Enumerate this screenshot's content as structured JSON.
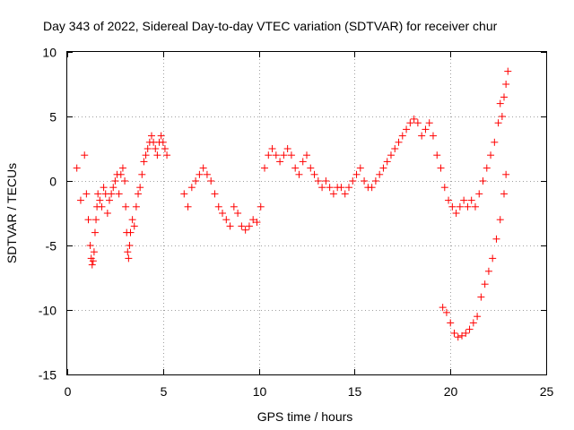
{
  "chart_data": {
    "type": "scatter",
    "title": "Day 343 of 2022, Sidereal Day-to-day VTEC variation (SDTVAR) for receiver chur",
    "xlabel": "GPS time / hours",
    "ylabel": "SDTVAR / TECUs",
    "xlim": [
      0,
      25
    ],
    "ylim": [
      -15,
      10
    ],
    "x_ticks": [
      0,
      5,
      10,
      15,
      20,
      25
    ],
    "x_tick_labels": [
      "0",
      "5",
      "10",
      "15",
      "20",
      "25"
    ],
    "y_ticks": [
      -15,
      -10,
      -5,
      0,
      5,
      10
    ],
    "y_tick_labels": [
      "-15",
      "-10",
      "-5",
      "0",
      "5",
      "10"
    ],
    "grid": true,
    "marker": "+",
    "color": "#ff0000",
    "series": [
      {
        "name": "SDTVAR",
        "x": [
          0.5,
          0.7,
          0.9,
          1.0,
          1.1,
          1.2,
          1.25,
          1.3,
          1.35,
          1.4,
          1.45,
          1.5,
          1.55,
          1.6,
          1.7,
          1.8,
          1.9,
          2.0,
          2.1,
          2.2,
          2.3,
          2.4,
          2.5,
          2.6,
          2.7,
          2.8,
          2.9,
          3.0,
          3.05,
          3.1,
          3.15,
          3.2,
          3.25,
          3.3,
          3.4,
          3.5,
          3.6,
          3.7,
          3.8,
          3.9,
          4.0,
          4.1,
          4.2,
          4.3,
          4.4,
          4.5,
          4.6,
          4.7,
          4.8,
          4.9,
          5.0,
          5.1,
          5.2,
          6.1,
          6.3,
          6.5,
          6.7,
          6.9,
          7.1,
          7.3,
          7.5,
          7.7,
          7.9,
          8.1,
          8.3,
          8.5,
          8.7,
          8.9,
          9.1,
          9.3,
          9.5,
          9.7,
          9.9,
          10.1,
          10.3,
          10.5,
          10.7,
          10.9,
          11.1,
          11.3,
          11.5,
          11.7,
          11.9,
          12.1,
          12.3,
          12.5,
          12.7,
          12.9,
          13.1,
          13.3,
          13.5,
          13.7,
          13.9,
          14.1,
          14.3,
          14.5,
          14.7,
          14.9,
          15.1,
          15.3,
          15.5,
          15.7,
          15.9,
          16.1,
          16.3,
          16.5,
          16.7,
          16.9,
          17.1,
          17.3,
          17.5,
          17.7,
          17.9,
          18.1,
          18.3,
          18.5,
          18.7,
          18.9,
          19.1,
          19.3,
          19.5,
          19.7,
          19.9,
          20.1,
          20.3,
          20.5,
          20.7,
          20.9,
          21.1,
          21.3,
          21.5,
          21.7,
          21.9,
          22.1,
          22.3,
          22.5,
          22.6,
          22.7,
          22.8,
          22.9,
          23.0,
          19.6,
          19.8,
          20.0,
          20.2,
          20.4,
          20.6,
          20.8,
          21.0,
          21.2,
          21.4,
          21.6,
          21.8,
          22.0,
          22.2,
          22.4,
          22.6,
          22.8,
          22.9
        ],
        "y": [
          1.0,
          -1.5,
          2.0,
          -1.0,
          -3.0,
          -5.0,
          -6.0,
          -6.5,
          -6.2,
          -5.5,
          -4.0,
          -3.0,
          -2.0,
          -1.0,
          -1.5,
          -2.0,
          -0.5,
          -1.0,
          -2.5,
          -1.5,
          -1.0,
          -0.5,
          0.0,
          0.5,
          -1.0,
          0.5,
          1.0,
          0.0,
          -2.0,
          -4.0,
          -5.5,
          -6.0,
          -5.0,
          -4.0,
          -3.0,
          -3.5,
          -2.0,
          -1.0,
          -0.5,
          0.5,
          1.5,
          2.0,
          2.5,
          3.0,
          3.5,
          3.0,
          2.5,
          2.0,
          3.0,
          3.5,
          3.0,
          2.5,
          2.0,
          -1.0,
          -2.0,
          -0.5,
          0.0,
          0.5,
          1.0,
          0.5,
          0.0,
          -1.0,
          -2.0,
          -2.5,
          -3.0,
          -3.5,
          -2.0,
          -2.5,
          -3.5,
          -3.8,
          -3.5,
          -3.0,
          -3.2,
          -2.0,
          1.0,
          2.0,
          2.5,
          2.0,
          1.5,
          2.0,
          2.5,
          2.0,
          1.0,
          0.5,
          1.5,
          2.0,
          1.0,
          0.5,
          0.0,
          -0.5,
          0.0,
          -0.5,
          -1.0,
          -0.5,
          -0.5,
          -1.0,
          -0.5,
          0.0,
          0.5,
          1.0,
          0.0,
          -0.5,
          -0.5,
          0.0,
          0.5,
          1.0,
          1.5,
          2.0,
          2.5,
          3.0,
          3.5,
          4.0,
          4.5,
          4.8,
          4.5,
          3.5,
          4.0,
          4.5,
          3.5,
          2.0,
          1.0,
          -0.5,
          -1.5,
          -2.0,
          -2.5,
          -2.0,
          -1.5,
          -2.0,
          -1.5,
          -2.0,
          -1.0,
          0.0,
          1.0,
          2.0,
          3.0,
          4.5,
          6.0,
          5.0,
          6.5,
          7.5,
          8.5,
          -9.8,
          -10.2,
          -11.0,
          -11.8,
          -12.1,
          -12.0,
          -11.8,
          -11.5,
          -11.0,
          -10.5,
          -9.0,
          -8.0,
          -7.0,
          -6.0,
          -4.5,
          -3.0,
          -1.0,
          0.5
        ]
      }
    ]
  }
}
